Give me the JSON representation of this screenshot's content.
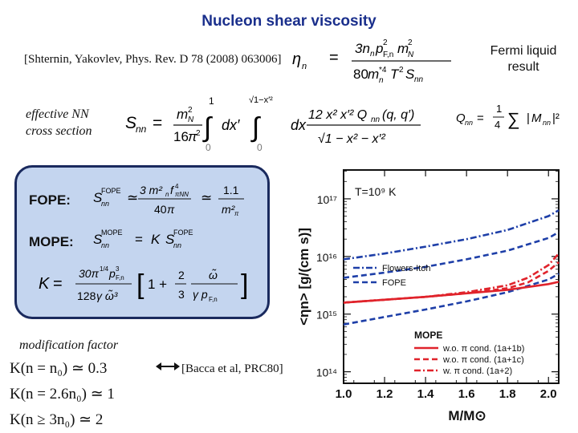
{
  "title": "Nucleon shear viscosity",
  "reference_top": "[Shternin, Yakovlev, Phys. Rev. D 78 (2008) 063006]",
  "fermi_liquid": [
    "Fermi liquid",
    "result"
  ],
  "effective_nn": [
    "effective NN",
    "cross section"
  ],
  "box": {
    "fope_label": "FOPE:",
    "mope_label": "MOPE:"
  },
  "modification_factor": "modification factor",
  "reference_bacca": "[Bacca et al, PRC80]",
  "k_values": [
    "K(n = n₀) ≃ 0.3",
    "K(n = 2.6n₀) ≃ 1",
    "K(n ≥ 3n₀) ≃ 2"
  ],
  "chart_data": {
    "type": "line",
    "title": "",
    "annotation": "T=10⁹ K",
    "xlabel": "M/M⊙",
    "ylabel": "<ηn> [g/(cm s)]",
    "x_ticks": [
      "1.0",
      "1.2",
      "1.4",
      "1.6",
      "1.8",
      "2.0"
    ],
    "y_ticks": [
      "10¹⁴",
      "10¹⁵",
      "10¹⁶",
      "10¹⁷"
    ],
    "xlim": [
      1.0,
      2.05
    ],
    "ylim_log10": [
      13.8,
      17.5
    ],
    "log_y": true,
    "legend_top": [
      "Flowers-Itoh",
      "FOPE"
    ],
    "legend_bottom_title": "MOPE",
    "legend_bottom": [
      "w.o. π cond. (1a+1b)",
      "w.o. π cond. (1a+1c)",
      "w. π cond.    (1a+2)"
    ],
    "colors": {
      "blue": "#1e3fa8",
      "red": "#e0232b"
    },
    "series": [
      {
        "name": "Flowers-Itoh",
        "color": "blue",
        "dash": "dashdot",
        "x": [
          1.0,
          1.2,
          1.4,
          1.6,
          1.8,
          2.0,
          2.05
        ],
        "y": [
          15.95,
          16.05,
          16.17,
          16.3,
          16.46,
          16.7,
          16.8
        ]
      },
      {
        "name": "FOPE",
        "color": "blue",
        "dash": "dash",
        "x": [
          1.0,
          1.2,
          1.4,
          1.6,
          1.8,
          2.0,
          2.05
        ],
        "y": [
          15.63,
          15.72,
          15.82,
          15.95,
          16.1,
          16.32,
          16.42
        ]
      },
      {
        "name": "",
        "color": "blue",
        "dash": "dash",
        "x": [
          1.0,
          1.2,
          1.4,
          1.6,
          1.8,
          2.0,
          2.05
        ],
        "y": [
          14.82,
          14.95,
          15.08,
          15.22,
          15.38,
          15.6,
          15.7
        ]
      },
      {
        "name": "w.o. π cond. (1a+1b)",
        "color": "red",
        "dash": "solid",
        "x": [
          1.0,
          1.2,
          1.4,
          1.6,
          1.8,
          2.0,
          2.05
        ],
        "y": [
          15.2,
          15.25,
          15.3,
          15.36,
          15.42,
          15.52,
          15.56
        ]
      },
      {
        "name": "w.o. π cond. (1a+1c)",
        "color": "red",
        "dash": "dash",
        "x": [
          1.0,
          1.2,
          1.4,
          1.6,
          1.8,
          1.9,
          2.0,
          2.05
        ],
        "y": [
          15.2,
          15.25,
          15.3,
          15.36,
          15.45,
          15.55,
          15.75,
          15.9
        ]
      },
      {
        "name": "w. π cond.    (1a+2)",
        "color": "red",
        "dash": "dashdot",
        "x": [
          1.0,
          1.2,
          1.4,
          1.6,
          1.8,
          1.9,
          2.0,
          2.05
        ],
        "y": [
          15.2,
          15.25,
          15.3,
          15.38,
          15.5,
          15.63,
          15.85,
          16.05
        ]
      }
    ]
  }
}
